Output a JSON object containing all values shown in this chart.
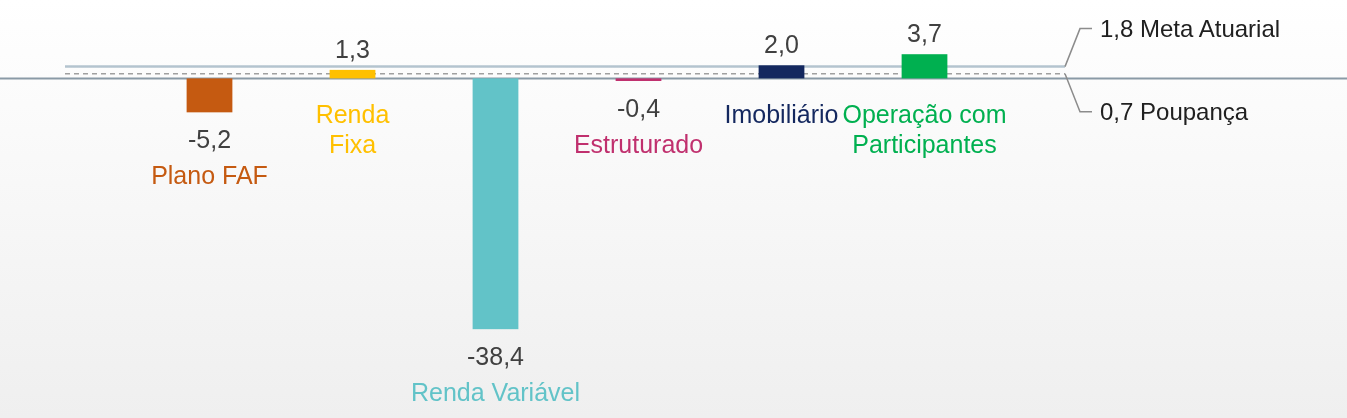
{
  "chart_data": {
    "type": "bar",
    "categories": [
      "Plano FAF",
      "Renda Fixa",
      "Renda Variável",
      "Estruturado",
      "Imobiliário",
      "Operação com Participantes"
    ],
    "values": [
      -5.2,
      1.3,
      -38.4,
      -0.4,
      2.0,
      3.7
    ],
    "colors": [
      "#c55a11",
      "#ffc000",
      "#62c3c8",
      "#c0306e",
      "#14285f",
      "#00b050"
    ],
    "value_labels": [
      "-5,2",
      "1,3",
      "-38,4",
      "-0,4",
      "2,0",
      "3,7"
    ],
    "ylim": [
      -52,
      12
    ],
    "ref_lines": [
      {
        "axis": "y",
        "value": 1.8,
        "label": "1,8 Meta Atuarial",
        "color": "#b4c4cf",
        "line_style": "solid"
      },
      {
        "axis": "y",
        "value": 0.7,
        "label": "0,7 Poupança",
        "color": "#a0a0a0",
        "line_style": "dashed"
      }
    ]
  }
}
